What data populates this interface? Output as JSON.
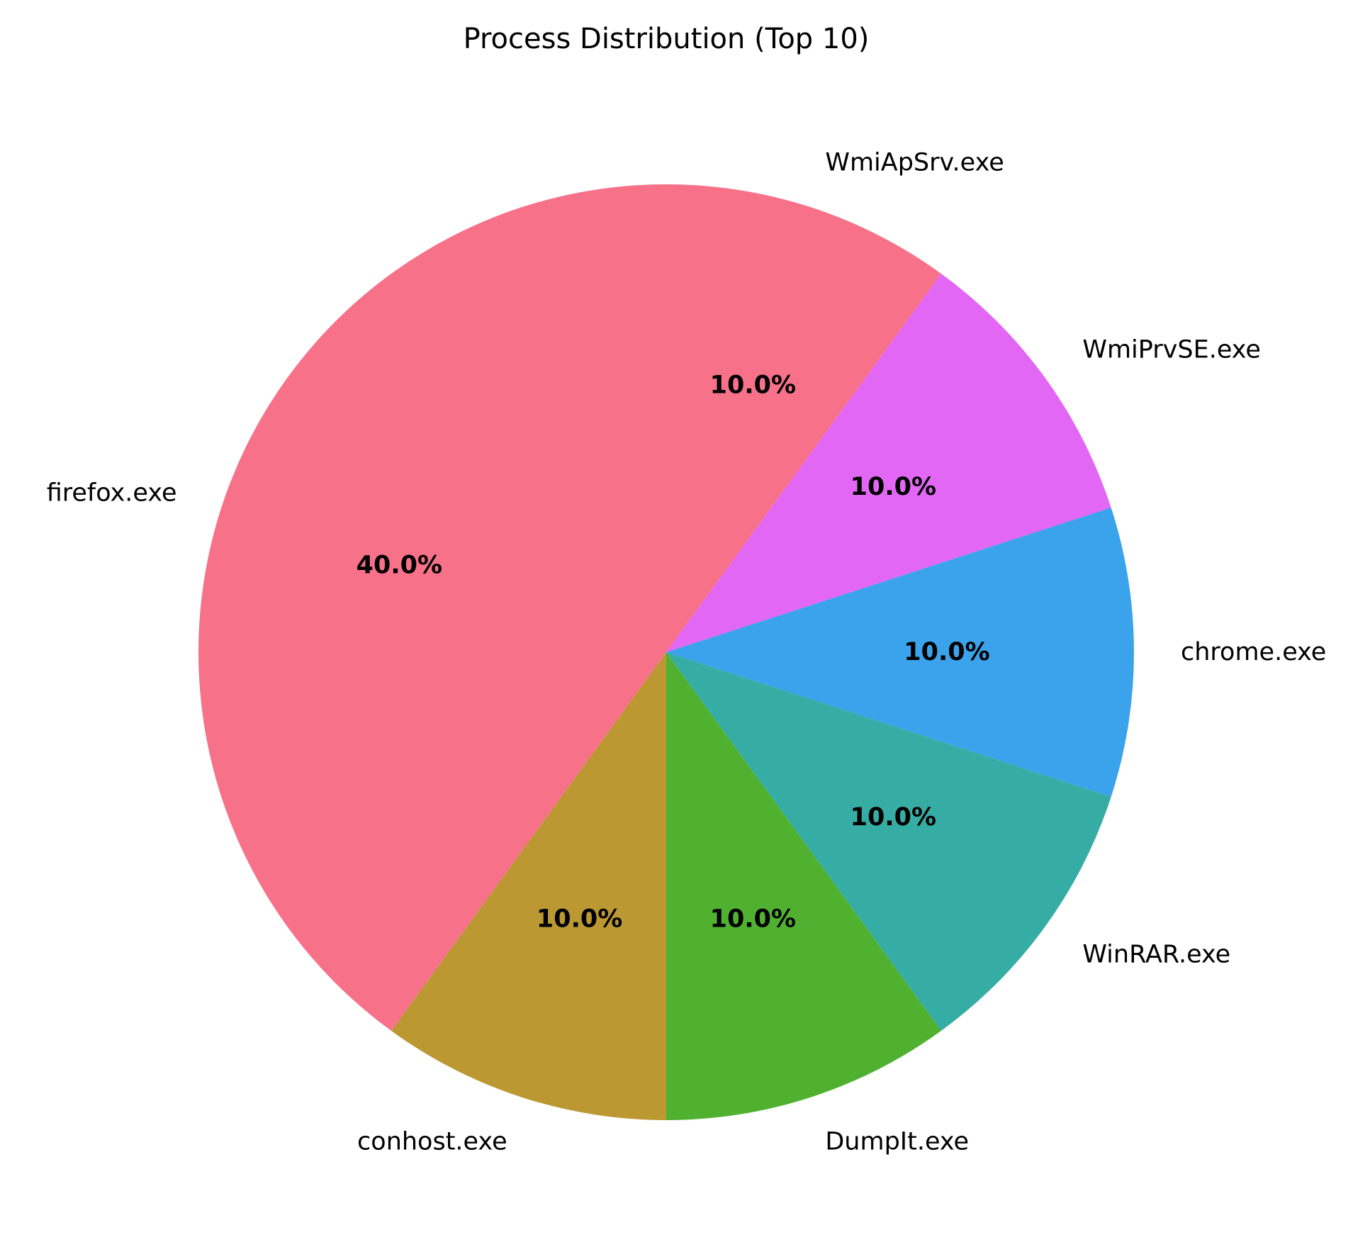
{
  "chart_data": {
    "type": "pie",
    "title": "Process Distribution (Top 10)",
    "slices": [
      {
        "label": "WmiApSrv.exe",
        "value": 10.0,
        "pct_label": "10.0%",
        "color": "#f77189"
      },
      {
        "label": "WmiPrvSE.exe",
        "value": 10.0,
        "pct_label": "10.0%",
        "color": "#e267f5"
      },
      {
        "label": "chrome.exe",
        "value": 10.0,
        "pct_label": "10.0%",
        "color": "#3ba3ec"
      },
      {
        "label": "WinRAR.exe",
        "value": 10.0,
        "pct_label": "10.0%",
        "color": "#36ada4"
      },
      {
        "label": "DumpIt.exe",
        "value": 10.0,
        "pct_label": "10.0%",
        "color": "#50b131"
      },
      {
        "label": "conhost.exe",
        "value": 10.0,
        "pct_label": "10.0%",
        "color": "#bb9832"
      },
      {
        "label": "firefox.exe",
        "value": 40.0,
        "pct_label": "40.0%",
        "color": "#f77189"
      }
    ],
    "start_angle": "12 o'clock",
    "direction": "clockwise"
  }
}
